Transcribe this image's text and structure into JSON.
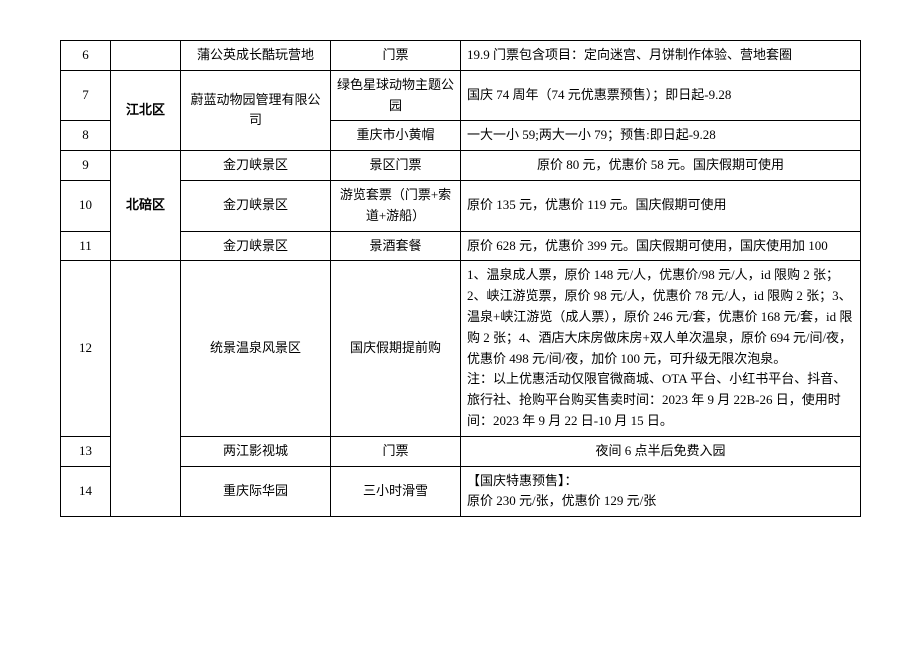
{
  "table": {
    "rows": [
      {
        "no": "6",
        "district": "",
        "company": "蒲公英成长酷玩营地",
        "product": "门票",
        "detail": "19.9 门票包含项目：定向迷宫、月饼制作体验、营地套圈"
      },
      {
        "no": "7",
        "district": "江北区",
        "company": "蔚蓝动物园管理有限公司",
        "product": "绿色星球动物主题公园",
        "detail": "国庆 74 周年（74 元优惠票预售）；即日起-9.28"
      },
      {
        "no": "8",
        "district": "",
        "company": "",
        "product": "重庆市小黄帽",
        "detail": "一大一小 59;两大一小 79；预售:即日起-9.28"
      },
      {
        "no": "9",
        "district": "",
        "company": "金刀峡景区",
        "product": "景区门票",
        "detail": "原价 80 元，优惠价 58 元。国庆假期可使用"
      },
      {
        "no": "10",
        "district": "北碚区",
        "company": "金刀峡景区",
        "product": "游览套票（门票+索道+游船）",
        "detail": "原价 135 元，优惠价 119 元。国庆假期可使用"
      },
      {
        "no": "11",
        "district": "",
        "company": "金刀峡景区",
        "product": "景酒套餐",
        "detail": "原价 628 元，优惠价 399 元。国庆假期可使用，国庆使用加 100"
      },
      {
        "no": "12",
        "district": "",
        "company": "统景温泉风景区",
        "product": "国庆假期提前购",
        "detail": "1、温泉成人票，原价 148 元/人，优惠价/98 元/人，id 限购 2 张；2、峡江游览票，原价 98 元/人，优惠价 78 元/人，id 限购 2 张；3、温泉+峡江游览（成人票），原价 246 元/套，优惠价 168 元/套，id 限购 2 张；4、酒店大床房做床房+双人单次温泉，原价 694 元/间/夜，优惠价 498 元/间/夜，加价 100 元，可升级无限次泡泉。\n注：以上优惠活动仅限官微商城、OTA 平台、小红书平台、抖音、旅行社、抢购平台购买售卖时间：2023 年 9 月 22B-26 日，使用时间：2023 年 9 月 22 日-10 月 15 日。"
      },
      {
        "no": "13",
        "district": "",
        "company": "两江影视城",
        "product": "门票",
        "detail": "夜间 6 点半后免费入园"
      },
      {
        "no": "14",
        "district": "",
        "company": "重庆际华园",
        "product": "三小时滑雪",
        "detail": "【国庆特惠预售】：\n原价 230 元/张，优惠价 129 元/张"
      }
    ],
    "detail_align": {
      "9": "center",
      "13": "center"
    }
  }
}
